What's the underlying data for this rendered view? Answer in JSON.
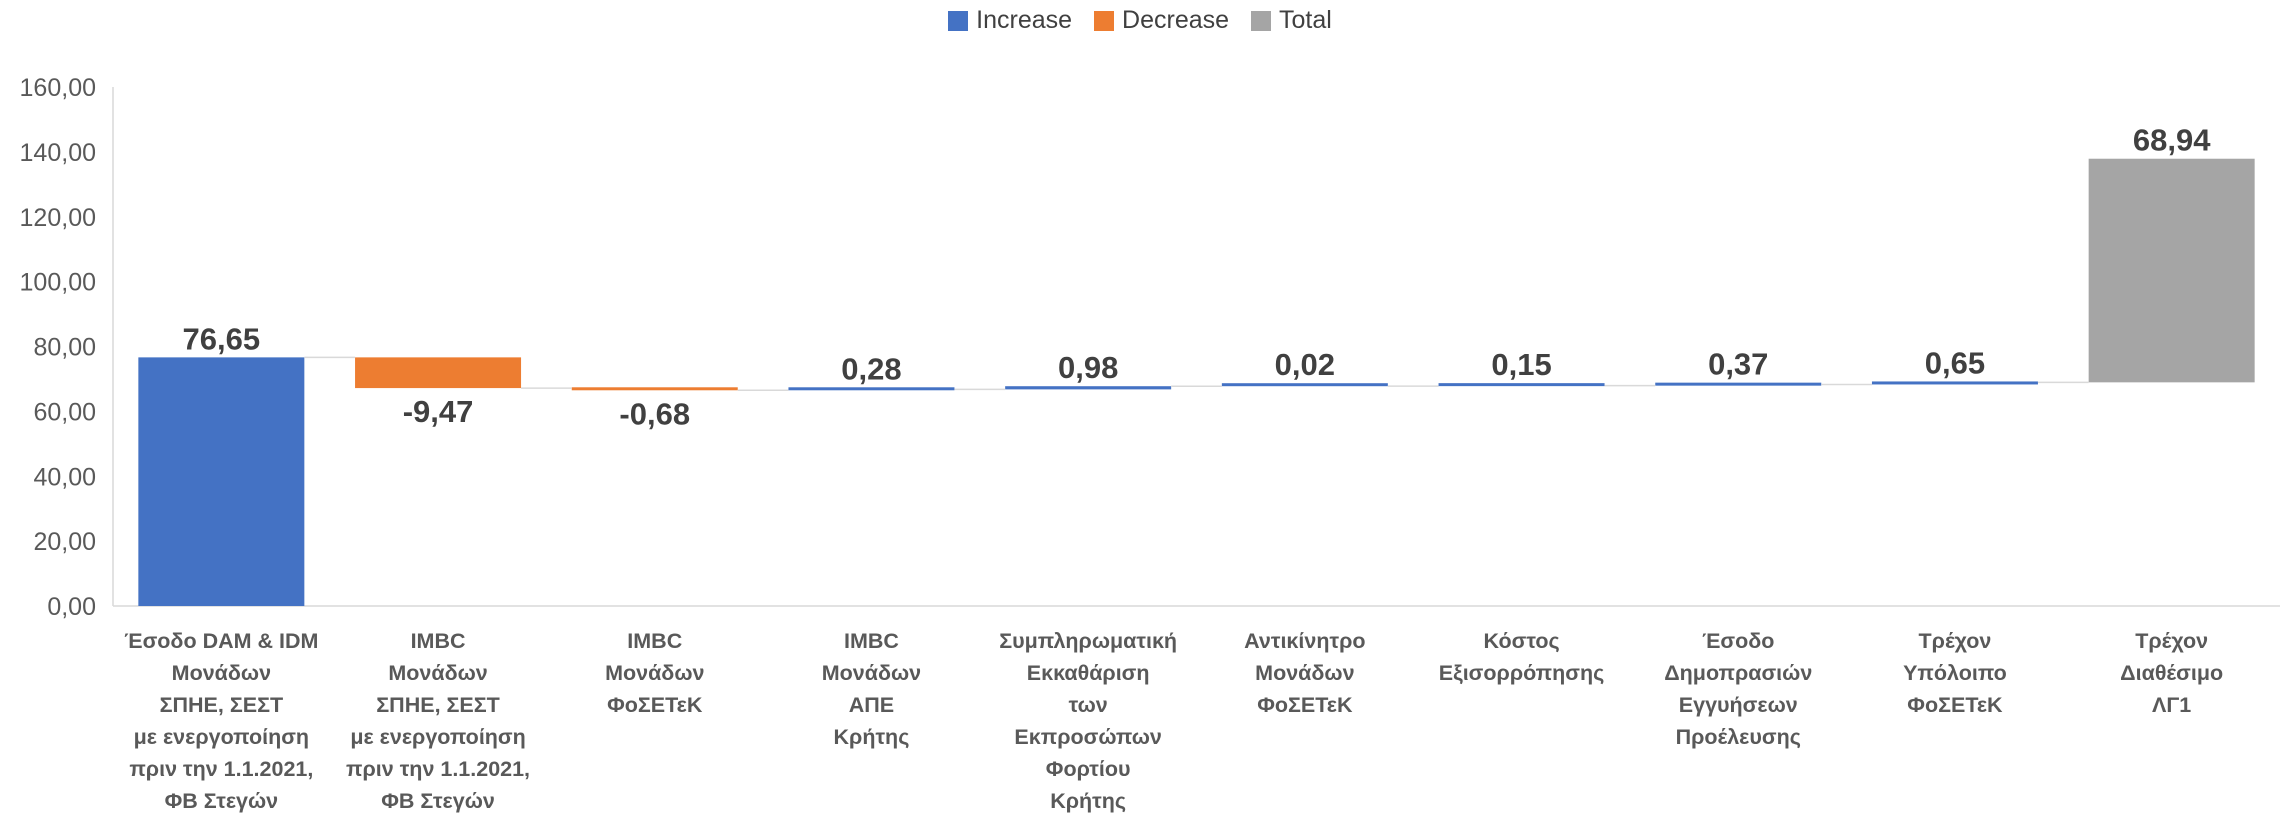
{
  "chart_data": {
    "type": "bar",
    "subtype": "waterfall",
    "legend": {
      "placement": "top-center",
      "items": [
        {
          "name": "Increase",
          "color": "#4472C4"
        },
        {
          "name": "Decrease",
          "color": "#ED7D31"
        },
        {
          "name": "Total",
          "color": "#A5A5A5"
        }
      ]
    },
    "ylim": [
      0,
      160
    ],
    "yticks": [
      "0,00",
      "20,00",
      "40,00",
      "60,00",
      "80,00",
      "100,00",
      "120,00",
      "140,00",
      "160,00"
    ],
    "grid": false,
    "categories": [
      [
        "Έσοδο DAM & IDM",
        "Μονάδων",
        "ΣΠΗΕ, ΣΕΣΤ",
        "με ενεργοποίηση",
        "πριν την 1.1.2021,",
        "ΦΒ Στεγών"
      ],
      [
        "IMBC",
        "Μονάδων",
        "ΣΠΗΕ, ΣΕΣΤ",
        "με ενεργοποίηση",
        "πριν την 1.1.2021,",
        "ΦΒ Στεγών"
      ],
      [
        "IMBC",
        "Μονάδων",
        "ΦοΣΕΤεΚ"
      ],
      [
        "IMBC",
        "Μονάδων",
        "ΑΠΕ",
        "Κρήτης"
      ],
      [
        "Συμπληρωματική",
        "Εκκαθάριση",
        "των",
        "Εκπροσώπων",
        "Φορτίου",
        "Κρήτης"
      ],
      [
        "Αντικίνητρο",
        "Μονάδων",
        "ΦοΣΕΤεΚ"
      ],
      [
        "Κόστος",
        "Εξισορρόπησης"
      ],
      [
        "Έσοδο",
        "Δημοπρασιών",
        "Εγγυήσεων",
        "Προέλευσης"
      ],
      [
        "Τρέχον",
        "Υπόλοιπο",
        "ΦοΣΕΤεΚ"
      ],
      [
        "Τρέχον",
        "Διαθέσιμο",
        "ΛΓ1"
      ]
    ],
    "values": [
      76.65,
      -9.47,
      -0.68,
      0.28,
      0.98,
      0.02,
      0.15,
      0.37,
      0.65,
      68.94
    ],
    "kinds": [
      "increase",
      "decrease",
      "decrease",
      "increase",
      "increase",
      "increase",
      "increase",
      "increase",
      "increase",
      "total"
    ],
    "labels": [
      "76,65",
      "-9,47",
      "-0,68",
      "0,28",
      "0,98",
      "0,02",
      "0,15",
      "0,37",
      "0,65",
      "68,94"
    ]
  }
}
